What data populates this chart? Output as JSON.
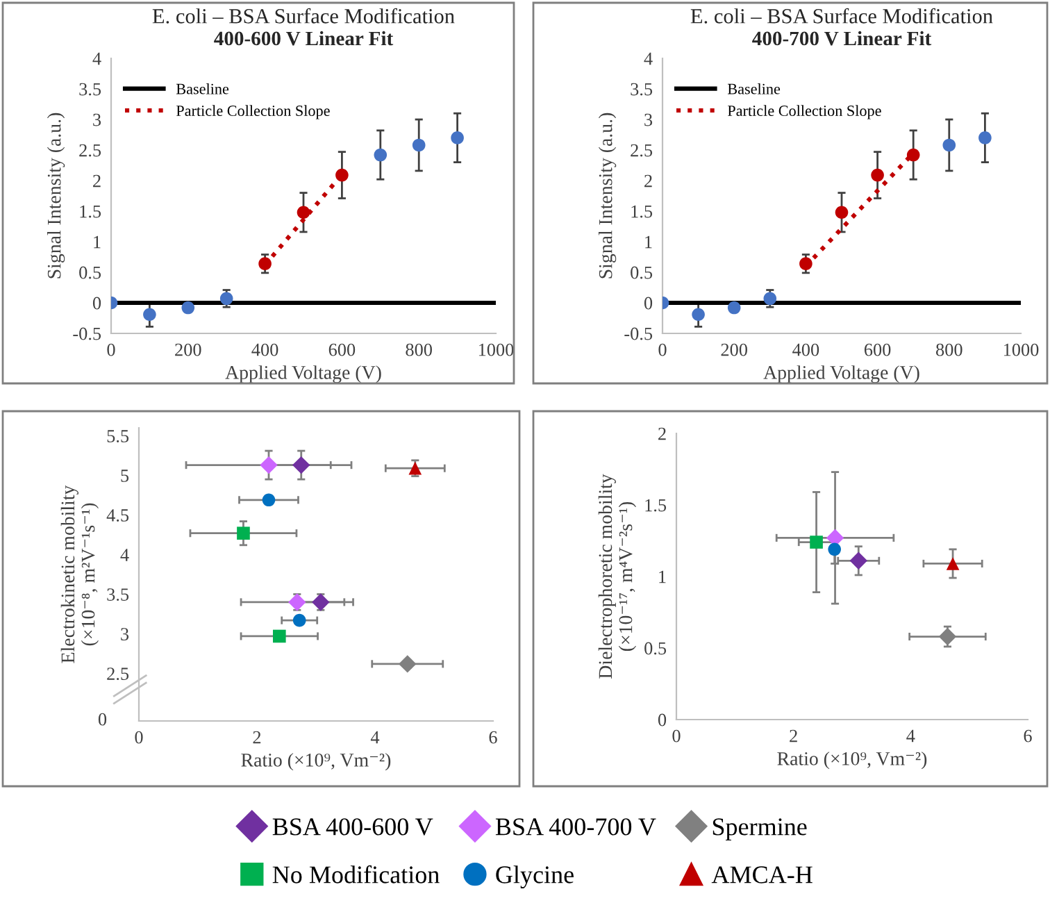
{
  "chart_data": [
    {
      "type": "scatter",
      "title": "E. coli – BSA Surface Modification",
      "subtitle": "400-600 V Linear Fit",
      "xlabel": "Applied Voltage (V)",
      "ylabel": "Signal Intensity (a.u.)",
      "xlim": [
        0,
        1000
      ],
      "ylim": [
        -0.5,
        4
      ],
      "xticks": [
        0,
        200,
        400,
        600,
        800,
        1000
      ],
      "yticks": [
        -0.5,
        0,
        0.5,
        1,
        1.5,
        2,
        2.5,
        3,
        3.5,
        4
      ],
      "legend": "top left",
      "series": [
        {
          "color": "#4472c4",
          "marker": "circle",
          "x": [
            0,
            100,
            200,
            300,
            700,
            800,
            900
          ],
          "values": [
            0,
            -0.19,
            -0.08,
            0.07,
            2.42,
            2.58,
            2.7
          ],
          "errors": [
            null,
            0.2,
            null,
            0.14,
            0.4,
            0.42,
            0.4
          ]
        },
        {
          "color": "#c00000",
          "marker": "circle",
          "x": [
            400,
            500,
            600
          ],
          "values": [
            0.64,
            1.48,
            2.09
          ],
          "errors": [
            0.15,
            0.32,
            0.38
          ]
        },
        {
          "name": "Baseline",
          "type": "line",
          "color": "#000000",
          "marker": "none",
          "line_style": "solid",
          "x": [
            0,
            1000
          ],
          "values": [
            0,
            0
          ]
        },
        {
          "name": "Particle Collection Slope",
          "type": "line",
          "color": "#c00000",
          "marker": "none",
          "line_style": "dotted",
          "x": [
            400,
            600
          ],
          "values": [
            0.62,
            2.1
          ]
        }
      ]
    },
    {
      "type": "scatter",
      "title": "E. coli – BSA Surface Modification",
      "subtitle": "400-700 V Linear Fit",
      "xlabel": "Applied Voltage (V)",
      "ylabel": "Signal Intensity (a.u.)",
      "xlim": [
        0,
        1000
      ],
      "ylim": [
        -0.5,
        4
      ],
      "xticks": [
        0,
        200,
        400,
        600,
        800,
        1000
      ],
      "yticks": [
        -0.5,
        0,
        0.5,
        1,
        1.5,
        2,
        2.5,
        3,
        3.5,
        4
      ],
      "legend": "top left",
      "series": [
        {
          "color": "#4472c4",
          "marker": "circle",
          "x": [
            0,
            100,
            200,
            300,
            800,
            900
          ],
          "values": [
            0,
            -0.19,
            -0.08,
            0.07,
            2.58,
            2.7
          ],
          "errors": [
            null,
            0.2,
            null,
            0.14,
            0.42,
            0.4
          ]
        },
        {
          "color": "#c00000",
          "marker": "circle",
          "x": [
            400,
            500,
            600,
            700
          ],
          "values": [
            0.64,
            1.48,
            2.09,
            2.42
          ],
          "errors": [
            0.15,
            0.32,
            0.38,
            0.4
          ]
        },
        {
          "name": "Baseline",
          "type": "line",
          "color": "#000000",
          "marker": "none",
          "line_style": "solid",
          "x": [
            0,
            1000
          ],
          "values": [
            0,
            0
          ]
        },
        {
          "name": "Particle Collection Slope",
          "type": "line",
          "color": "#c00000",
          "marker": "none",
          "line_style": "dotted",
          "x": [
            400,
            700
          ],
          "values": [
            0.6,
            2.45
          ]
        }
      ]
    },
    {
      "type": "scatter",
      "xlabel": "Ratio (×10⁹, Vm⁻²)",
      "ylabel": "Electrokinetic mobility\n(×10⁻⁸, m²V⁻¹s⁻¹)",
      "xlim": [
        0,
        6
      ],
      "ylim": [
        1.9,
        5.6
      ],
      "xticks": [
        0,
        2,
        4,
        6
      ],
      "yticks": [
        2.5,
        3,
        3.5,
        4,
        4.5,
        5,
        5.5
      ],
      "annotations": [
        "0"
      ],
      "legend": "bottom",
      "series": [
        {
          "name": "BSA 400-600 V",
          "color": "#7030a0",
          "marker": "diamond",
          "x": [
            2.75,
            3.08
          ],
          "values": [
            5.13,
            3.4
          ],
          "xerrors": [
            0.5,
            0.4
          ],
          "errors": [
            0.18,
            0.1
          ]
        },
        {
          "name": "BSA 400-700 V",
          "color": "#cc66ff",
          "marker": "diamond",
          "x": [
            2.2,
            2.68
          ],
          "values": [
            5.13,
            3.4
          ],
          "xerrors": [
            1.4,
            0.95
          ],
          "errors": [
            0.18,
            0.1
          ]
        },
        {
          "name": "Spermine",
          "color": "#808080",
          "marker": "diamond",
          "x": [
            4.55
          ],
          "values": [
            2.62
          ],
          "xerrors": [
            0.6
          ],
          "errors": [
            0.05
          ]
        },
        {
          "name": "No Modification",
          "color": "#00b050",
          "marker": "square",
          "x": [
            1.77,
            2.38
          ],
          "values": [
            4.27,
            2.97
          ],
          "xerrors": [
            0.9,
            0.65
          ],
          "errors": [
            0.15,
            null
          ]
        },
        {
          "name": "Glycine",
          "color": "#0070c0",
          "marker": "circle",
          "x": [
            2.2,
            2.72
          ],
          "values": [
            4.69,
            3.17
          ],
          "xerrors": [
            0.5,
            0.3
          ],
          "errors": [
            null,
            null
          ]
        },
        {
          "name": "AMCA-H",
          "color": "#c00000",
          "marker": "triangle",
          "x": [
            4.68
          ],
          "values": [
            5.09
          ],
          "xerrors": [
            0.5
          ],
          "errors": [
            0.1
          ]
        }
      ]
    },
    {
      "type": "scatter",
      "xlabel": "Ratio (×10⁹, Vm⁻²)",
      "ylabel": "Dielectrophoretic mobility\n(×10⁻¹⁷, m⁴V⁻²s⁻¹)",
      "xlim": [
        0,
        6
      ],
      "ylim": [
        0,
        2
      ],
      "xticks": [
        0,
        2,
        4,
        6
      ],
      "yticks": [
        0,
        0.5,
        1,
        1.5,
        2
      ],
      "series": [
        {
          "color": "#7030a0",
          "marker": "diamond",
          "x": [
            3.11
          ],
          "values": [
            1.11
          ],
          "xerrors": [
            0.35
          ],
          "errors": [
            0.1
          ]
        },
        {
          "color": "#cc66ff",
          "marker": "diamond",
          "x": [
            2.71
          ],
          "values": [
            1.27
          ],
          "xerrors": [
            1.0
          ],
          "errors": [
            0.46
          ]
        },
        {
          "color": "#808080",
          "marker": "diamond",
          "x": [
            4.63
          ],
          "values": [
            0.58
          ],
          "xerrors": [
            0.65
          ],
          "errors": [
            0.07
          ]
        },
        {
          "color": "#00b050",
          "marker": "square",
          "x": [
            2.39
          ],
          "values": [
            1.24
          ],
          "xerrors": [
            0.3
          ],
          "errors": [
            0.35
          ]
        },
        {
          "color": "#0070c0",
          "marker": "circle",
          "x": [
            2.7
          ],
          "values": [
            1.19
          ],
          "xerrors": [
            null
          ],
          "errors": [
            0.1
          ]
        },
        {
          "color": "#c00000",
          "marker": "triangle",
          "x": [
            4.72
          ],
          "values": [
            1.09
          ],
          "xerrors": [
            0.5
          ],
          "errors": [
            0.1
          ]
        }
      ]
    }
  ]
}
